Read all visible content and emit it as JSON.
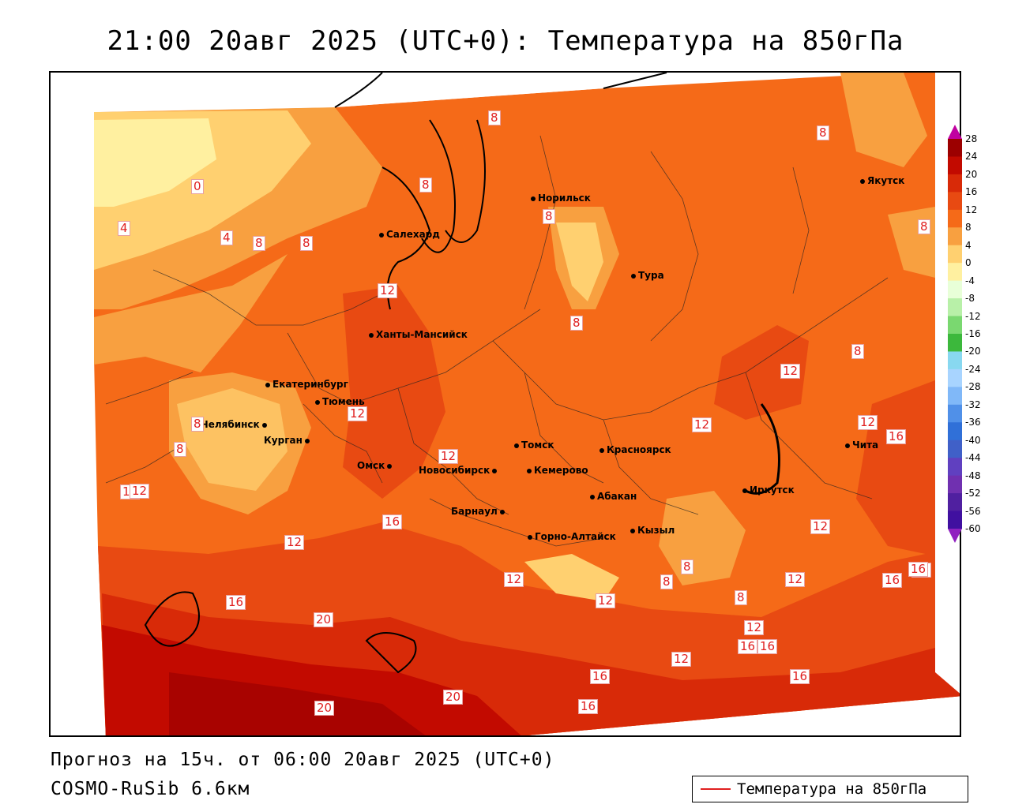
{
  "header": {
    "title": "21:00 20авг 2025 (UTC+0): Температура на 850гПа"
  },
  "footer": {
    "forecast": "Прогноз на 15ч. от 06:00 20авг 2025 (UTC+0)",
    "model": "COSMO-RuSib 6.6км"
  },
  "legend": {
    "label": "Температура на 850гПа",
    "line_color": "#e02020"
  },
  "colorbar": {
    "ticks": [
      "28",
      "24",
      "20",
      "16",
      "12",
      "8",
      "4",
      "0",
      "-4",
      "-8",
      "-12",
      "-16",
      "-20",
      "-24",
      "-28",
      "-32",
      "-36",
      "-40",
      "-44",
      "-48",
      "-52",
      "-56",
      "-60"
    ],
    "colors": [
      "#9c0000",
      "#c20a00",
      "#d82a08",
      "#e84a12",
      "#f56a18",
      "#f8a040",
      "#ffd070",
      "#fff0a0",
      "#e8ffd8",
      "#b8f0a8",
      "#7ad870",
      "#3cb83c",
      "#88d8f0",
      "#a8d4ff",
      "#80b8f8",
      "#5090e8",
      "#3070d8",
      "#4060c8",
      "#6040c0",
      "#7030b0",
      "#5020a0",
      "#4010a0"
    ],
    "top_arrow_color": "#c000a0",
    "bottom_arrow_color": "#9020c0"
  },
  "cities": [
    {
      "name": "Норильск"
    },
    {
      "name": "Якутск"
    },
    {
      "name": "Салехард"
    },
    {
      "name": "Тура"
    },
    {
      "name": "Ханты-Мансийск"
    },
    {
      "name": "Екатеринбург"
    },
    {
      "name": "Тюмень"
    },
    {
      "name": "Челябинск"
    },
    {
      "name": "Курган"
    },
    {
      "name": "Омск"
    },
    {
      "name": "Новосибирск"
    },
    {
      "name": "Томск"
    },
    {
      "name": "Красноярск"
    },
    {
      "name": "Кемерово"
    },
    {
      "name": "Барнаул"
    },
    {
      "name": "Абакан"
    },
    {
      "name": "Иркутск"
    },
    {
      "name": "Чита"
    },
    {
      "name": "Горно-Алтайск"
    },
    {
      "name": "Кызыл"
    }
  ],
  "contour_labels": [
    "8",
    "8",
    "8",
    "0",
    "4",
    "4",
    "8",
    "8",
    "12",
    "8",
    "8",
    "12",
    "8",
    "8",
    "12",
    "12",
    "12",
    "12",
    "16",
    "8",
    "12",
    "12",
    "12",
    "16",
    "12",
    "12",
    "16",
    "8",
    "12",
    "8",
    "8",
    "8",
    "12",
    "12",
    "16",
    "16",
    "20",
    "12",
    "16",
    "16",
    "16",
    "16",
    "20",
    "20",
    "16",
    "16",
    "12"
  ]
}
